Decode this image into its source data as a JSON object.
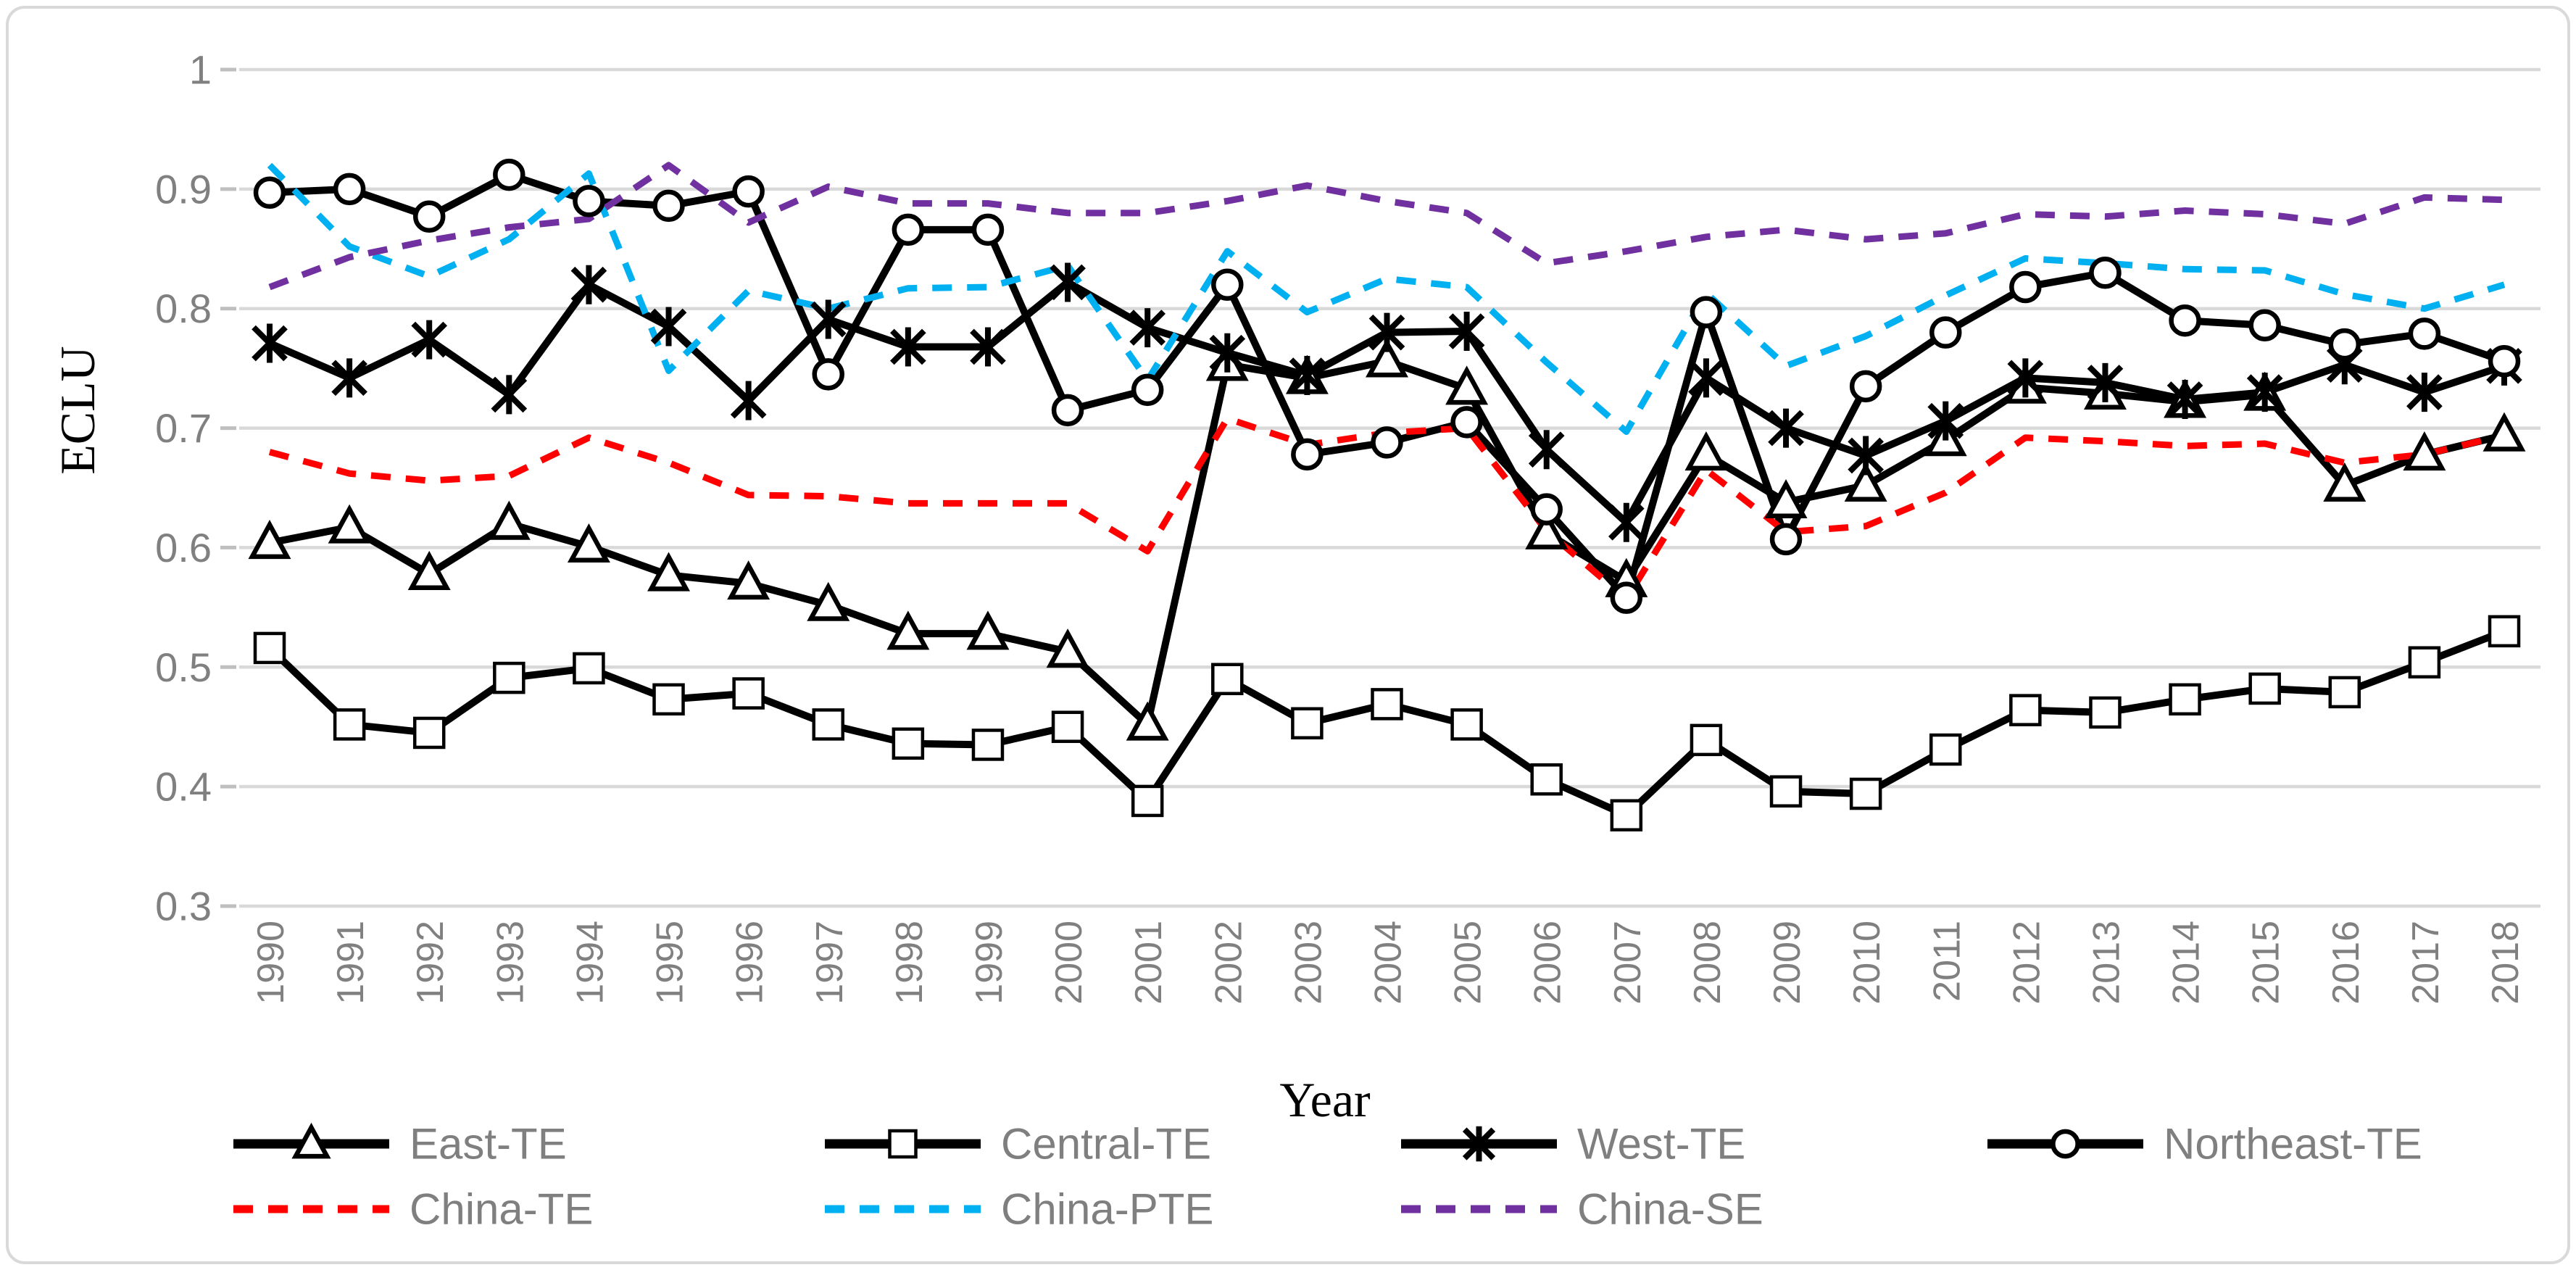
{
  "chart_data": {
    "type": "line",
    "title": "",
    "xlabel": "Year",
    "ylabel": "ECLU",
    "x": [
      1990,
      1991,
      1992,
      1993,
      1994,
      1995,
      1996,
      1997,
      1998,
      1999,
      2000,
      2001,
      2002,
      2003,
      2004,
      2005,
      2006,
      2007,
      2008,
      2009,
      2010,
      2011,
      2012,
      2013,
      2014,
      2015,
      2016,
      2017,
      2018
    ],
    "ylim": [
      0.3,
      1.0
    ],
    "yticks": [
      1,
      0.9,
      0.8,
      0.7,
      0.6,
      0.5,
      0.4,
      0.3
    ],
    "ytick_labels": [
      "1",
      "0.9",
      "0.8",
      "0.7",
      "0.6",
      "0.5",
      "0.4",
      "0.3"
    ],
    "grid": true,
    "legend_position": "bottom",
    "axis_text_color": "#808080",
    "legend_text_color": "#7F7F7F",
    "gridline_color": "#D9D9D9",
    "series": [
      {
        "name": "East-TE",
        "color": "#000000",
        "style": "solid",
        "marker": "triangle",
        "values": [
          0.604,
          0.617,
          0.578,
          0.62,
          0.601,
          0.577,
          0.57,
          0.552,
          0.528,
          0.528,
          0.513,
          0.452,
          0.753,
          0.742,
          0.756,
          0.733,
          0.612,
          0.572,
          0.678,
          0.638,
          0.652,
          0.69,
          0.734,
          0.729,
          0.722,
          0.728,
          0.652,
          0.678,
          0.694
        ]
      },
      {
        "name": "Central-TE",
        "color": "#000000",
        "style": "solid",
        "marker": "square",
        "values": [
          0.516,
          0.452,
          0.445,
          0.491,
          0.499,
          0.473,
          0.478,
          0.452,
          0.436,
          0.435,
          0.45,
          0.388,
          0.49,
          0.453,
          0.469,
          0.452,
          0.406,
          0.376,
          0.439,
          0.396,
          0.394,
          0.431,
          0.464,
          0.462,
          0.473,
          0.482,
          0.479,
          0.504,
          0.53
        ]
      },
      {
        "name": "West-TE",
        "color": "#000000",
        "style": "solid",
        "marker": "asterisk",
        "values": [
          0.771,
          0.742,
          0.774,
          0.728,
          0.82,
          0.785,
          0.723,
          0.791,
          0.768,
          0.768,
          0.822,
          0.784,
          0.763,
          0.744,
          0.78,
          0.781,
          0.682,
          0.621,
          0.742,
          0.7,
          0.677,
          0.706,
          0.742,
          0.738,
          0.724,
          0.73,
          0.753,
          0.73,
          0.752
        ]
      },
      {
        "name": "Northeast-TE",
        "color": "#000000",
        "style": "solid",
        "marker": "circle",
        "values": [
          0.897,
          0.9,
          0.877,
          0.912,
          0.89,
          0.886,
          0.898,
          0.745,
          0.866,
          0.866,
          0.715,
          0.732,
          0.82,
          0.678,
          0.688,
          0.705,
          0.632,
          0.558,
          0.797,
          0.607,
          0.735,
          0.78,
          0.818,
          0.83,
          0.79,
          0.786,
          0.77,
          0.779,
          0.756
        ]
      },
      {
        "name": "China-TE",
        "color": "#FF0000",
        "style": "dashed",
        "marker": "none",
        "values": [
          0.68,
          0.662,
          0.656,
          0.66,
          0.692,
          0.671,
          0.644,
          0.643,
          0.637,
          0.637,
          0.637,
          0.597,
          0.708,
          0.686,
          0.696,
          0.7,
          0.614,
          0.557,
          0.665,
          0.613,
          0.618,
          0.646,
          0.692,
          0.689,
          0.685,
          0.687,
          0.671,
          0.678,
          0.694
        ]
      },
      {
        "name": "China-PTE",
        "color": "#00B0F0",
        "style": "dashed",
        "marker": "none",
        "values": [
          0.92,
          0.852,
          0.827,
          0.858,
          0.913,
          0.748,
          0.815,
          0.8,
          0.817,
          0.818,
          0.836,
          0.74,
          0.848,
          0.797,
          0.825,
          0.818,
          0.755,
          0.697,
          0.813,
          0.752,
          0.777,
          0.811,
          0.842,
          0.838,
          0.833,
          0.832,
          0.812,
          0.8,
          0.82
        ]
      },
      {
        "name": "China-SE",
        "color": "#7030A0",
        "style": "dashed",
        "marker": "none",
        "values": [
          0.818,
          0.843,
          0.857,
          0.868,
          0.875,
          0.92,
          0.872,
          0.902,
          0.888,
          0.888,
          0.88,
          0.88,
          0.89,
          0.903,
          0.89,
          0.88,
          0.838,
          0.848,
          0.86,
          0.866,
          0.858,
          0.863,
          0.879,
          0.877,
          0.882,
          0.879,
          0.871,
          0.893,
          0.891
        ]
      }
    ],
    "legend_rows": [
      [
        "East-TE",
        "Central-TE",
        "West-TE",
        "Northeast-TE"
      ],
      [
        "China-TE",
        "China-PTE",
        "China-SE"
      ]
    ]
  }
}
